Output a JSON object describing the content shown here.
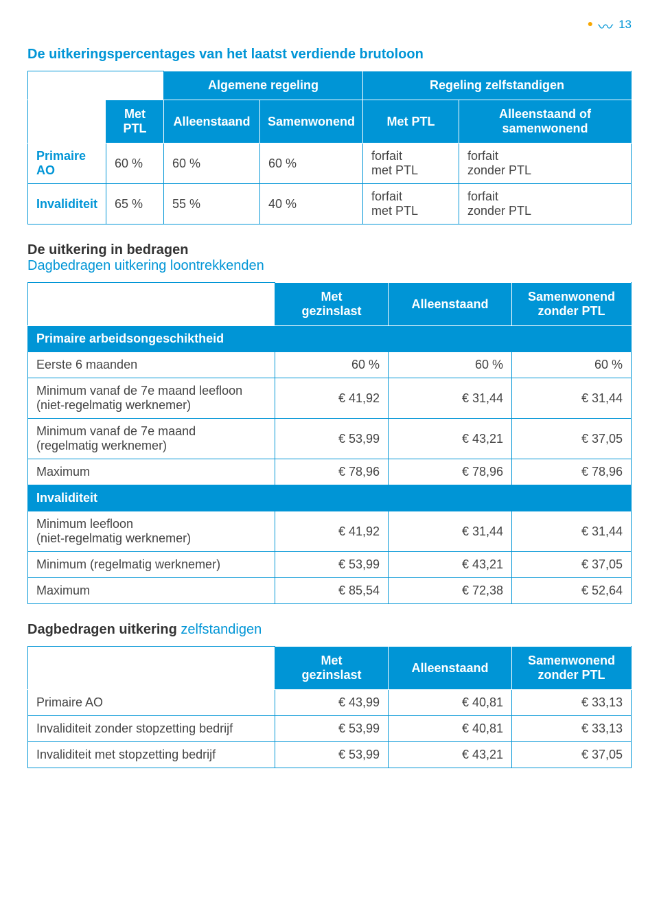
{
  "page_number": "13",
  "colors": {
    "brand_blue": "#0095d6",
    "text": "#444444",
    "white": "#ffffff",
    "orange": "#f7a600"
  },
  "heading1": "De uitkeringspercentages van het laatst verdiende brutoloon",
  "table1": {
    "group_headers": {
      "algemene": "Algemene regeling",
      "zelfstandigen": "Regeling zelfstandigen"
    },
    "col_headers": {
      "met_ptl": "Met\nPTL",
      "alleen": "Alleenstaand",
      "samen": "Samenwonend",
      "met_ptl2": "Met PTL",
      "alleen_of": "Alleenstaand of\nsamenwonend"
    },
    "rows": [
      {
        "label": "Primaire\nAO",
        "c1": "60 %",
        "c2": "60 %",
        "c3": "60 %",
        "c4": "forfait\nmet PTL",
        "c5": "forfait\nzonder PTL"
      },
      {
        "label": "Invaliditeit",
        "c1": "65 %",
        "c2": "55 %",
        "c3": "40 %",
        "c4": "forfait\nmet PTL",
        "c5": "forfait\nzonder PTL"
      }
    ]
  },
  "heading2_black": "De uitkering in bedragen",
  "heading2_blue": "Dagbedragen uitkering loontrekkenden",
  "table2": {
    "col_headers": {
      "c1": "Met\ngezinslast",
      "c2": "Alleenstaand",
      "c3": "Samenwonend\nzonder PTL"
    },
    "section1": "Primaire arbeidsongeschiktheid",
    "rows1": [
      {
        "label": "Eerste 6 maanden",
        "c1": "60 %",
        "c2": "60 %",
        "c3": "60 %"
      },
      {
        "label": "Minimum vanaf de 7e maand leefloon\n(niet-regelmatig werknemer)",
        "c1": "€ 41,92",
        "c2": "€ 31,44",
        "c3": "€ 31,44"
      },
      {
        "label": "Minimum vanaf de 7e maand\n(regelmatig werknemer)",
        "c1": "€ 53,99",
        "c2": "€ 43,21",
        "c3": "€ 37,05"
      },
      {
        "label": "Maximum",
        "c1": "€ 78,96",
        "c2": "€ 78,96",
        "c3": "€ 78,96"
      }
    ],
    "section2": "Invaliditeit",
    "rows2": [
      {
        "label": "Minimum leefloon\n(niet-regelmatig werknemer)",
        "c1": "€ 41,92",
        "c2": "€ 31,44",
        "c3": "€ 31,44"
      },
      {
        "label": "Minimum (regelmatig werknemer)",
        "c1": "€ 53,99",
        "c2": "€ 43,21",
        "c3": "€ 37,05"
      },
      {
        "label": "Maximum",
        "c1": "€ 85,54",
        "c2": "€ 72,38",
        "c3": "€ 52,64"
      }
    ]
  },
  "heading3_black": "Dagbedragen uitkering ",
  "heading3_blue": "zelfstandigen",
  "table3": {
    "col_headers": {
      "c1": "Met\ngezinslast",
      "c2": "Alleenstaand",
      "c3": "Samenwonend\nzonder PTL"
    },
    "rows": [
      {
        "label": "Primaire AO",
        "c1": "€ 43,99",
        "c2": "€ 40,81",
        "c3": "€ 33,13"
      },
      {
        "label": "Invaliditeit zonder stopzetting bedrijf",
        "c1": "€ 53,99",
        "c2": "€ 40,81",
        "c3": "€ 33,13"
      },
      {
        "label": "Invaliditeit met stopzetting bedrijf",
        "c1": "€ 53,99",
        "c2": "€ 43,21",
        "c3": "€ 37,05"
      }
    ]
  }
}
